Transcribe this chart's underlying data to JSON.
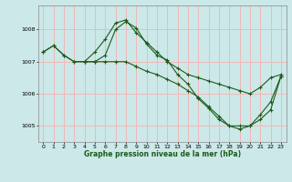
{
  "title": "Graphe pression niveau de la mer (hPa)",
  "bg_color": "#cce8e8",
  "grid_color": "#f0b8b8",
  "line_color": "#1a5c1a",
  "xlim": [
    -0.5,
    23.5
  ],
  "ylim": [
    1004.5,
    1008.75
  ],
  "yticks": [
    1005,
    1006,
    1007,
    1008
  ],
  "xticks": [
    0,
    1,
    2,
    3,
    4,
    5,
    6,
    7,
    8,
    9,
    10,
    11,
    12,
    13,
    14,
    15,
    16,
    17,
    18,
    19,
    20,
    21,
    22,
    23
  ],
  "line1_x": [
    0,
    1,
    2,
    3,
    4,
    5,
    6,
    7,
    8,
    9,
    10,
    11,
    12,
    13,
    14,
    15,
    16,
    17,
    18,
    19,
    20,
    21,
    22,
    23
  ],
  "line1_y": [
    1007.3,
    1007.5,
    1007.2,
    1007.0,
    1007.0,
    1007.3,
    1007.7,
    1008.2,
    1008.3,
    1007.9,
    1007.6,
    1007.3,
    1007.0,
    1006.8,
    1006.6,
    1006.5,
    1006.4,
    1006.3,
    1006.2,
    1006.1,
    1006.0,
    1006.2,
    1006.5,
    1006.6
  ],
  "line2_x": [
    0,
    1,
    2,
    3,
    4,
    5,
    6,
    7,
    8,
    9,
    10,
    11,
    12,
    13,
    14,
    15,
    16,
    17,
    18,
    19,
    20,
    21,
    22,
    23
  ],
  "line2_y": [
    1007.3,
    1007.5,
    1007.2,
    1007.0,
    1007.0,
    1007.0,
    1007.2,
    1008.0,
    1008.25,
    1008.05,
    1007.55,
    1007.2,
    1007.05,
    1006.6,
    1006.3,
    1005.85,
    1005.55,
    1005.2,
    1005.0,
    1004.9,
    1005.0,
    1005.35,
    1005.75,
    1006.55
  ],
  "line3_x": [
    4,
    5,
    6,
    7,
    8,
    9,
    10,
    11,
    12,
    13,
    14,
    15,
    16,
    17,
    18,
    19,
    20,
    21,
    22,
    23
  ],
  "line3_y": [
    1007.0,
    1007.0,
    1007.0,
    1007.0,
    1007.0,
    1006.85,
    1006.7,
    1006.6,
    1006.45,
    1006.3,
    1006.1,
    1005.9,
    1005.6,
    1005.3,
    1005.0,
    1005.0,
    1005.0,
    1005.2,
    1005.5,
    1006.55
  ]
}
